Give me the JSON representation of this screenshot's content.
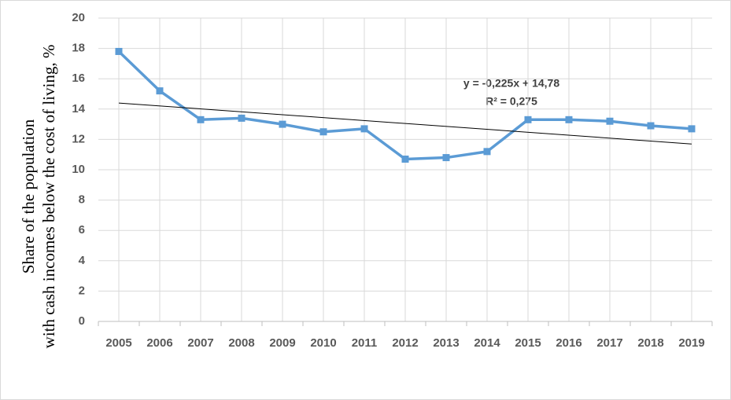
{
  "chart_data": {
    "type": "line",
    "y_label": [
      "Share of the population",
      "with cash incomes below the cost of living, %"
    ],
    "categories": [
      "2005",
      "2006",
      "2007",
      "2008",
      "2009",
      "2010",
      "2011",
      "2012",
      "2013",
      "2014",
      "2015",
      "2016",
      "2017",
      "2018",
      "2019"
    ],
    "series": [
      {
        "name": "Share of the population with cash incomes below the cost of living",
        "color": "#5b9bd5",
        "values": [
          17.8,
          15.2,
          13.3,
          13.4,
          13.0,
          12.5,
          12.7,
          10.7,
          10.8,
          11.2,
          13.3,
          13.3,
          13.2,
          12.9,
          12.7
        ]
      }
    ],
    "trendline": {
      "equation": "y = -0,225x + 14,78",
      "r2": "R² = 0,275",
      "start": 14.4,
      "end": 11.7,
      "color": "#000000"
    },
    "ylim": [
      0,
      20
    ],
    "yticks": [
      0,
      2,
      4,
      6,
      8,
      10,
      12,
      14,
      16,
      18,
      20
    ],
    "grid": true
  }
}
